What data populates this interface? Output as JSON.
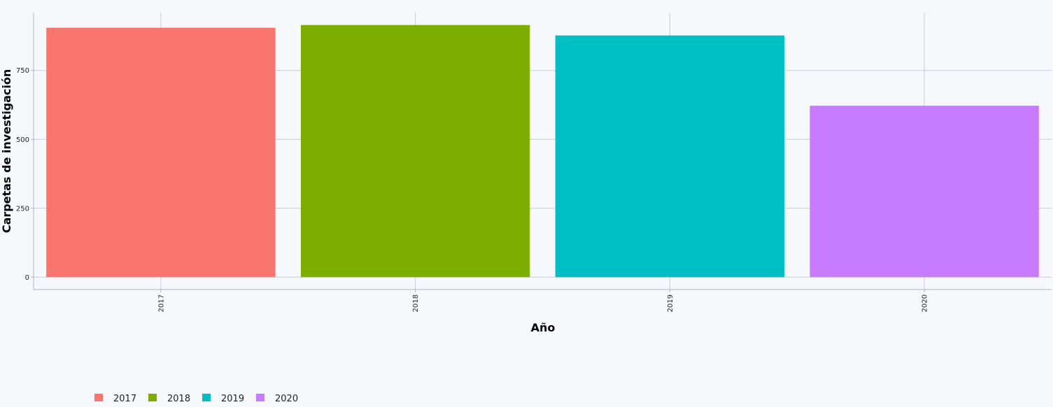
{
  "chart_data": {
    "type": "bar",
    "title": "",
    "xlabel": "Año",
    "ylabel": "Carpetas de investigación",
    "categories": [
      "2017",
      "2018",
      "2019",
      "2020"
    ],
    "values": [
      905,
      915,
      877,
      622
    ],
    "colors": [
      "#f8766d",
      "#7cae00",
      "#00bfc4",
      "#c77cff"
    ],
    "ylim": [
      -45,
      960
    ],
    "yticks": [
      0,
      250,
      500,
      750
    ],
    "grid": true,
    "legend": {
      "position": "bottom-left",
      "entries": [
        {
          "label": "2017",
          "color": "#f8766d"
        },
        {
          "label": "2018",
          "color": "#7cae00"
        },
        {
          "label": "2019",
          "color": "#00bfc4"
        },
        {
          "label": "2020",
          "color": "#c77cff"
        }
      ]
    }
  }
}
